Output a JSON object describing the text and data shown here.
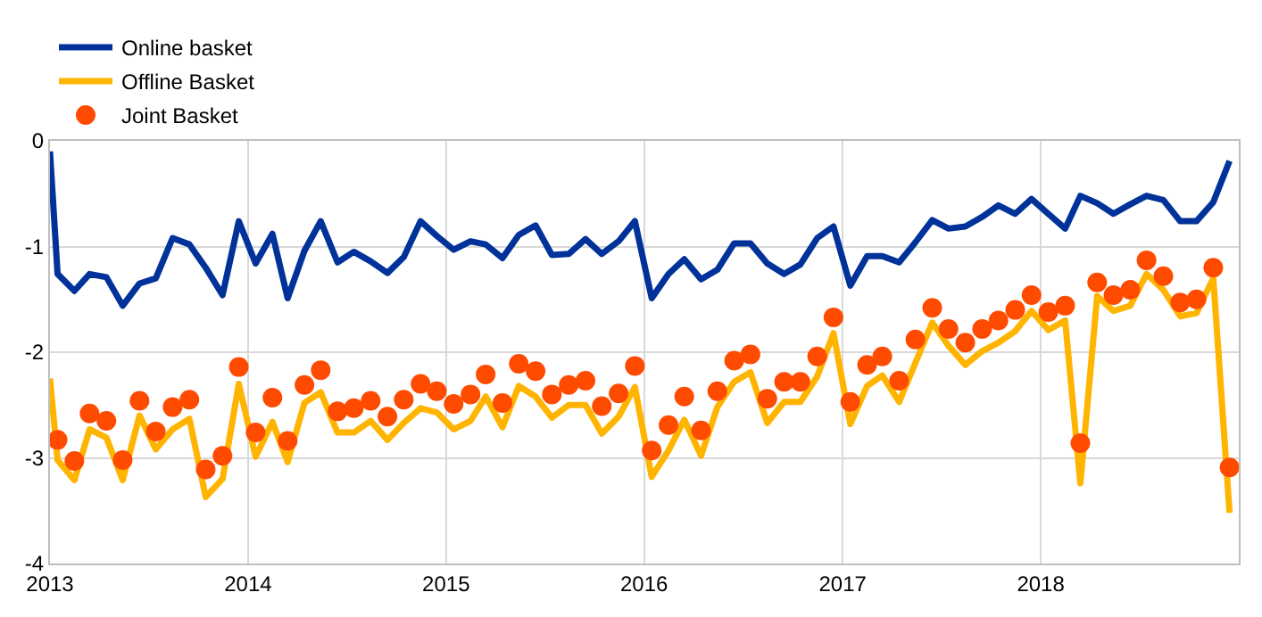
{
  "chart_data": {
    "type": "line",
    "x": [
      "2013-01-15",
      "2013-02-15",
      "2013-03-15",
      "2013-04-15",
      "2013-05-15",
      "2013-06-15",
      "2013-07-15",
      "2013-08-15",
      "2013-09-15",
      "2013-10-15",
      "2013-11-15",
      "2013-12-15",
      "2014-01-15",
      "2014-02-15",
      "2014-03-15",
      "2014-04-15",
      "2014-05-15",
      "2014-06-15",
      "2014-07-15",
      "2014-08-15",
      "2014-09-15",
      "2014-10-15",
      "2014-11-15",
      "2014-12-15",
      "2015-01-15",
      "2015-02-15",
      "2015-03-15",
      "2015-04-15",
      "2015-05-15",
      "2015-06-15",
      "2015-07-15",
      "2015-08-15",
      "2015-09-15",
      "2015-10-15",
      "2015-11-15",
      "2015-12-15",
      "2016-01-15",
      "2016-02-15",
      "2016-03-15",
      "2016-04-15",
      "2016-05-15",
      "2016-06-15",
      "2016-07-15",
      "2016-08-15",
      "2016-09-15",
      "2016-10-15",
      "2016-11-15",
      "2016-12-15",
      "2017-01-15",
      "2017-02-15",
      "2017-03-15",
      "2017-04-15",
      "2017-05-15",
      "2017-06-15",
      "2017-07-15",
      "2017-08-15",
      "2017-09-15",
      "2017-10-15",
      "2017-11-15",
      "2017-12-15",
      "2018-01-15",
      "2018-02-15",
      "2018-03-15",
      "2018-04-15",
      "2018-05-15",
      "2018-06-15",
      "2018-07-15",
      "2018-08-15",
      "2018-09-15",
      "2018-10-15",
      "2018-11-15",
      "2018-12-15"
    ],
    "series": [
      {
        "name": "Online basket",
        "color": "#003299",
        "x": [
          "2013-01-01",
          "2013-01-15",
          "2013-02-15",
          "2013-03-15",
          "2013-04-15",
          "2013-05-15",
          "2013-06-15",
          "2013-07-15",
          "2013-08-15",
          "2013-09-15",
          "2013-10-15",
          "2013-11-15",
          "2013-12-15",
          "2014-01-15",
          "2014-02-15",
          "2014-03-15",
          "2014-04-15",
          "2014-05-15",
          "2014-06-15",
          "2014-07-15",
          "2014-08-15",
          "2014-09-15",
          "2014-10-15",
          "2014-11-15",
          "2014-12-15",
          "2015-01-15",
          "2015-02-15",
          "2015-03-15",
          "2015-04-15",
          "2015-05-15",
          "2015-06-15",
          "2015-07-15",
          "2015-08-15",
          "2015-09-15",
          "2015-10-15",
          "2015-11-15",
          "2015-12-15",
          "2016-01-15",
          "2016-02-15",
          "2016-03-15",
          "2016-04-15",
          "2016-05-15",
          "2016-06-15",
          "2016-07-15",
          "2016-08-15",
          "2016-09-15",
          "2016-10-15",
          "2016-11-15",
          "2016-12-15",
          "2017-01-15",
          "2017-02-15",
          "2017-03-15",
          "2017-04-15",
          "2017-05-15",
          "2017-06-15",
          "2017-07-15",
          "2017-08-15",
          "2017-09-15",
          "2017-10-15",
          "2017-11-15",
          "2017-12-15",
          "2018-01-15",
          "2018-02-15",
          "2018-03-15",
          "2018-04-15",
          "2018-05-15",
          "2018-06-15",
          "2018-07-15",
          "2018-08-15",
          "2018-09-15",
          "2018-10-15",
          "2018-11-15",
          "2018-12-15"
        ],
        "values": [
          -0.1,
          -1.26,
          -1.42,
          -1.26,
          -1.29,
          -1.56,
          -1.35,
          -1.3,
          -0.92,
          -0.98,
          -1.2,
          -1.46,
          -0.76,
          -1.16,
          -0.88,
          -1.49,
          -1.04,
          -0.76,
          -1.15,
          -1.05,
          -1.14,
          -1.25,
          -1.1,
          -0.76,
          -0.9,
          -1.03,
          -0.95,
          -0.98,
          -1.11,
          -0.89,
          -0.8,
          -1.08,
          -1.07,
          -0.93,
          -1.07,
          -0.95,
          -0.76,
          -1.49,
          -1.26,
          -1.12,
          -1.31,
          -1.22,
          -0.97,
          -0.97,
          -1.16,
          -1.26,
          -1.17,
          -0.92,
          -0.81,
          -1.37,
          -1.09,
          -1.09,
          -1.15,
          -0.96,
          -0.75,
          -0.83,
          -0.81,
          -0.72,
          -0.61,
          -0.69,
          -0.55,
          -0.69,
          -0.83,
          -0.52,
          -0.59,
          -0.69,
          -0.6,
          -0.52,
          -0.56,
          -0.76,
          -0.76,
          -0.58,
          -0.19
        ]
      },
      {
        "name": "Offline Basket",
        "color": "#ffb400",
        "x": [
          "2013-01-01",
          "2013-01-15",
          "2013-02-15",
          "2013-03-15",
          "2013-04-15",
          "2013-05-15",
          "2013-06-15",
          "2013-07-15",
          "2013-08-15",
          "2013-09-15",
          "2013-10-15",
          "2013-11-15",
          "2013-12-15",
          "2014-01-15",
          "2014-02-15",
          "2014-03-15",
          "2014-04-15",
          "2014-05-15",
          "2014-06-15",
          "2014-07-15",
          "2014-08-15",
          "2014-09-15",
          "2014-10-15",
          "2014-11-15",
          "2014-12-15",
          "2015-01-15",
          "2015-02-15",
          "2015-03-15",
          "2015-04-15",
          "2015-05-15",
          "2015-06-15",
          "2015-07-15",
          "2015-08-15",
          "2015-09-15",
          "2015-10-15",
          "2015-11-15",
          "2015-12-15",
          "2016-01-15",
          "2016-02-15",
          "2016-03-15",
          "2016-04-15",
          "2016-05-15",
          "2016-06-15",
          "2016-07-15",
          "2016-08-15",
          "2016-09-15",
          "2016-10-15",
          "2016-11-15",
          "2016-12-15",
          "2017-01-15",
          "2017-02-15",
          "2017-03-15",
          "2017-04-15",
          "2017-05-15",
          "2017-06-15",
          "2017-07-15",
          "2017-08-15",
          "2017-09-15",
          "2017-10-15",
          "2017-11-15",
          "2017-12-15",
          "2018-01-15",
          "2018-02-15",
          "2018-03-15",
          "2018-04-15",
          "2018-05-15",
          "2018-06-15",
          "2018-07-15",
          "2018-08-15",
          "2018-09-15",
          "2018-10-15",
          "2018-11-15",
          "2018-12-15"
        ],
        "values": [
          -2.25,
          -3.02,
          -3.21,
          -2.73,
          -2.81,
          -3.21,
          -2.6,
          -2.92,
          -2.73,
          -2.63,
          -3.37,
          -3.2,
          -2.3,
          -2.99,
          -2.66,
          -3.04,
          -2.48,
          -2.38,
          -2.76,
          -2.76,
          -2.65,
          -2.83,
          -2.67,
          -2.53,
          -2.57,
          -2.73,
          -2.65,
          -2.42,
          -2.71,
          -2.32,
          -2.42,
          -2.62,
          -2.5,
          -2.5,
          -2.77,
          -2.61,
          -2.33,
          -3.18,
          -2.93,
          -2.64,
          -2.98,
          -2.52,
          -2.28,
          -2.19,
          -2.67,
          -2.47,
          -2.47,
          -2.23,
          -1.82,
          -2.68,
          -2.32,
          -2.22,
          -2.47,
          -2.1,
          -1.72,
          -1.94,
          -2.12,
          -1.99,
          -1.91,
          -1.8,
          -1.61,
          -1.79,
          -1.7,
          -3.24,
          -1.47,
          -1.61,
          -1.56,
          -1.26,
          -1.41,
          -1.66,
          -1.63,
          -1.3,
          -3.52
        ]
      },
      {
        "name": "Joint Basket",
        "type": "scatter",
        "marker": "circle",
        "color": "#ff4b00",
        "values": [
          -2.83,
          -3.03,
          -2.58,
          -2.65,
          -3.02,
          -2.46,
          -2.75,
          -2.52,
          -2.45,
          -3.11,
          -2.98,
          -2.14,
          -2.76,
          -2.43,
          -2.84,
          -2.31,
          -2.17,
          -2.56,
          -2.53,
          -2.46,
          -2.61,
          -2.45,
          -2.3,
          -2.37,
          -2.49,
          -2.4,
          -2.21,
          -2.48,
          -2.11,
          -2.18,
          -2.4,
          -2.31,
          -2.27,
          -2.51,
          -2.39,
          -2.13,
          -2.93,
          -2.69,
          -2.42,
          -2.74,
          -2.37,
          -2.08,
          -2.02,
          -2.44,
          -2.28,
          -2.28,
          -2.04,
          -1.67,
          -2.47,
          -2.12,
          -2.04,
          -2.27,
          -1.88,
          -1.58,
          -1.78,
          -1.91,
          -1.78,
          -1.7,
          -1.6,
          -1.46,
          -1.62,
          -1.56,
          -2.86,
          -1.34,
          -1.46,
          -1.41,
          -1.13,
          -1.28,
          -1.53,
          -1.5,
          -1.2,
          -3.09
        ]
      }
    ],
    "xlim": [
      "2013-01-01",
      "2019-01-01"
    ],
    "xticks": [
      {
        "value": "2013-01-01",
        "label": "2013"
      },
      {
        "value": "2014-01-01",
        "label": "2014"
      },
      {
        "value": "2015-01-01",
        "label": "2015"
      },
      {
        "value": "2016-01-01",
        "label": "2016"
      },
      {
        "value": "2017-01-01",
        "label": "2017"
      },
      {
        "value": "2018-01-01",
        "label": "2018"
      }
    ],
    "ylim": [
      -4,
      0
    ],
    "yticks": [
      -4,
      -3,
      -2,
      -1,
      0
    ],
    "grid": true,
    "legend": "top left"
  }
}
